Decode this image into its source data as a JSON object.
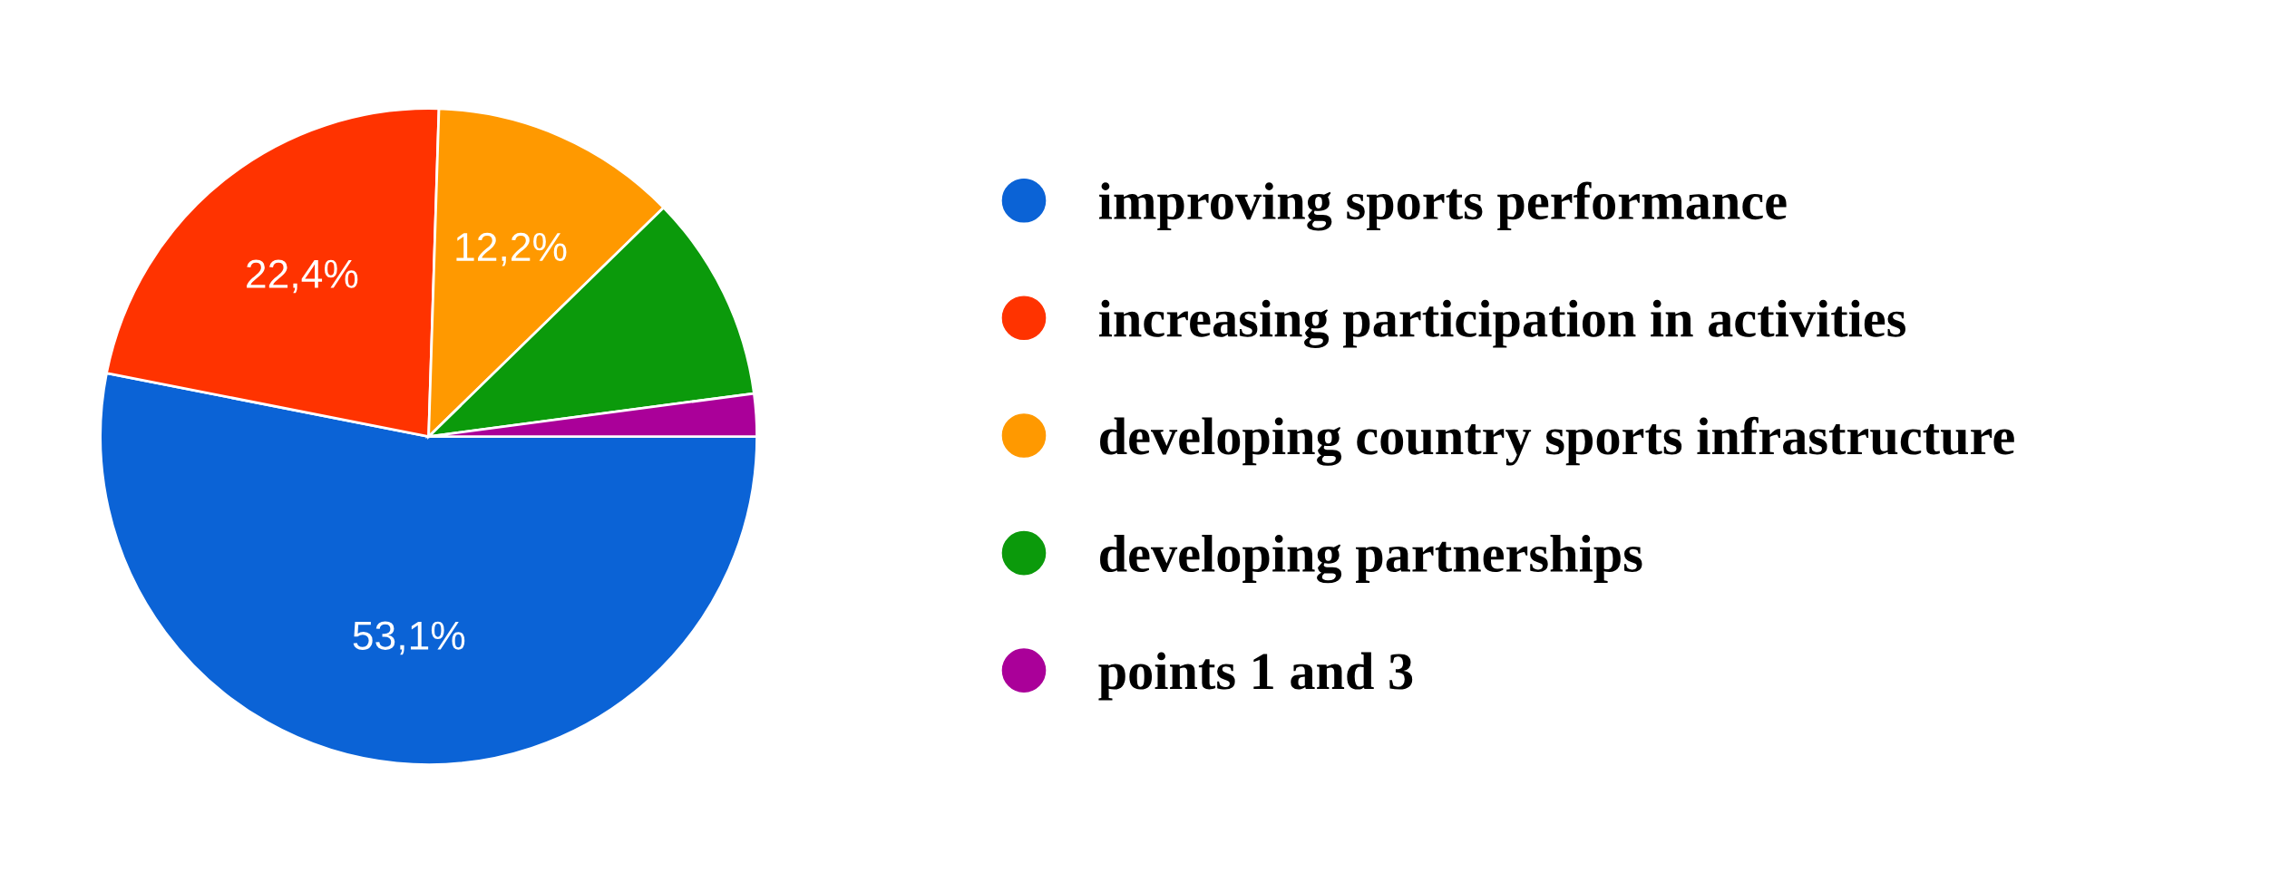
{
  "chart_data": {
    "type": "pie",
    "categories": [
      "improving sports performance",
      "increasing participation in activities",
      "developing country sports infrastructure",
      "developing partnerships",
      "points 1 and 3"
    ],
    "values": [
      53.1,
      22.4,
      12.2,
      10.2,
      2.1
    ],
    "value_labels": [
      "53,1%",
      "22,4%",
      "12,2%",
      null,
      null
    ],
    "colors": [
      "#0b63d6",
      "#ff3300",
      "#ff9900",
      "#0b9a0b",
      "#aa0099"
    ],
    "legend": "right"
  }
}
